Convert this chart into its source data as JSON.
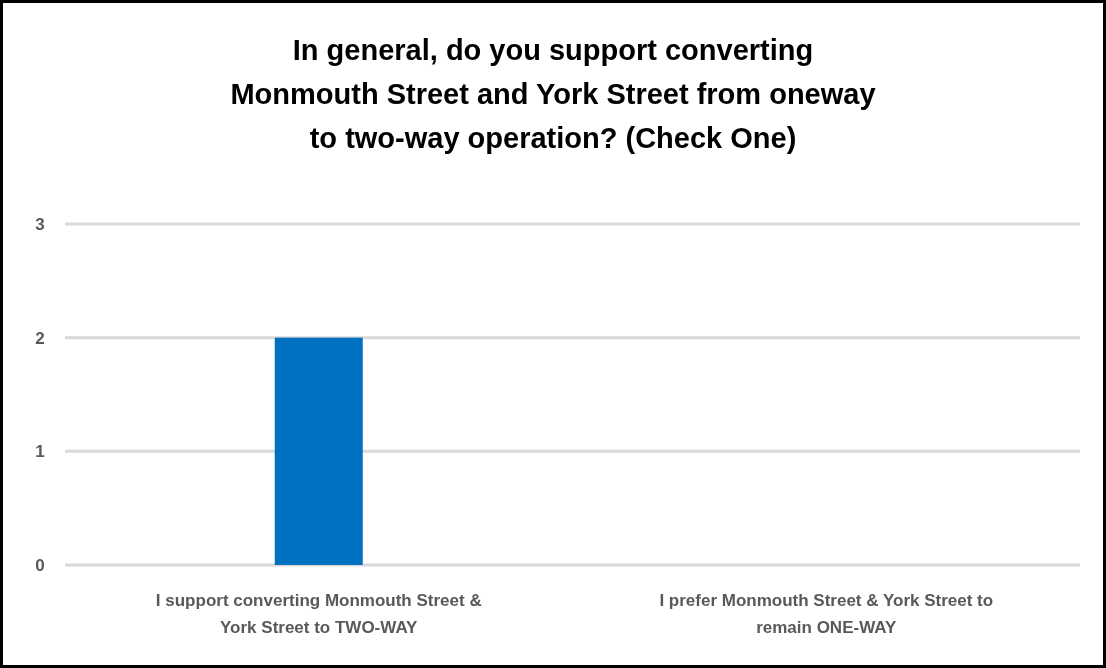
{
  "chart_data": {
    "type": "bar",
    "title": "In general, do you support converting Monmouth Street and York Street from oneway to two-way operation? (Check One)",
    "categories": [
      "I support converting Monmouth Street & York Street to TWO-WAY",
      "I prefer Monmouth Street & York Street to remain ONE-WAY"
    ],
    "values": [
      2,
      0
    ],
    "color": "#0070c0",
    "ylim": [
      0,
      3
    ],
    "yticks": [
      0,
      1,
      2,
      3
    ],
    "grid": "y"
  }
}
